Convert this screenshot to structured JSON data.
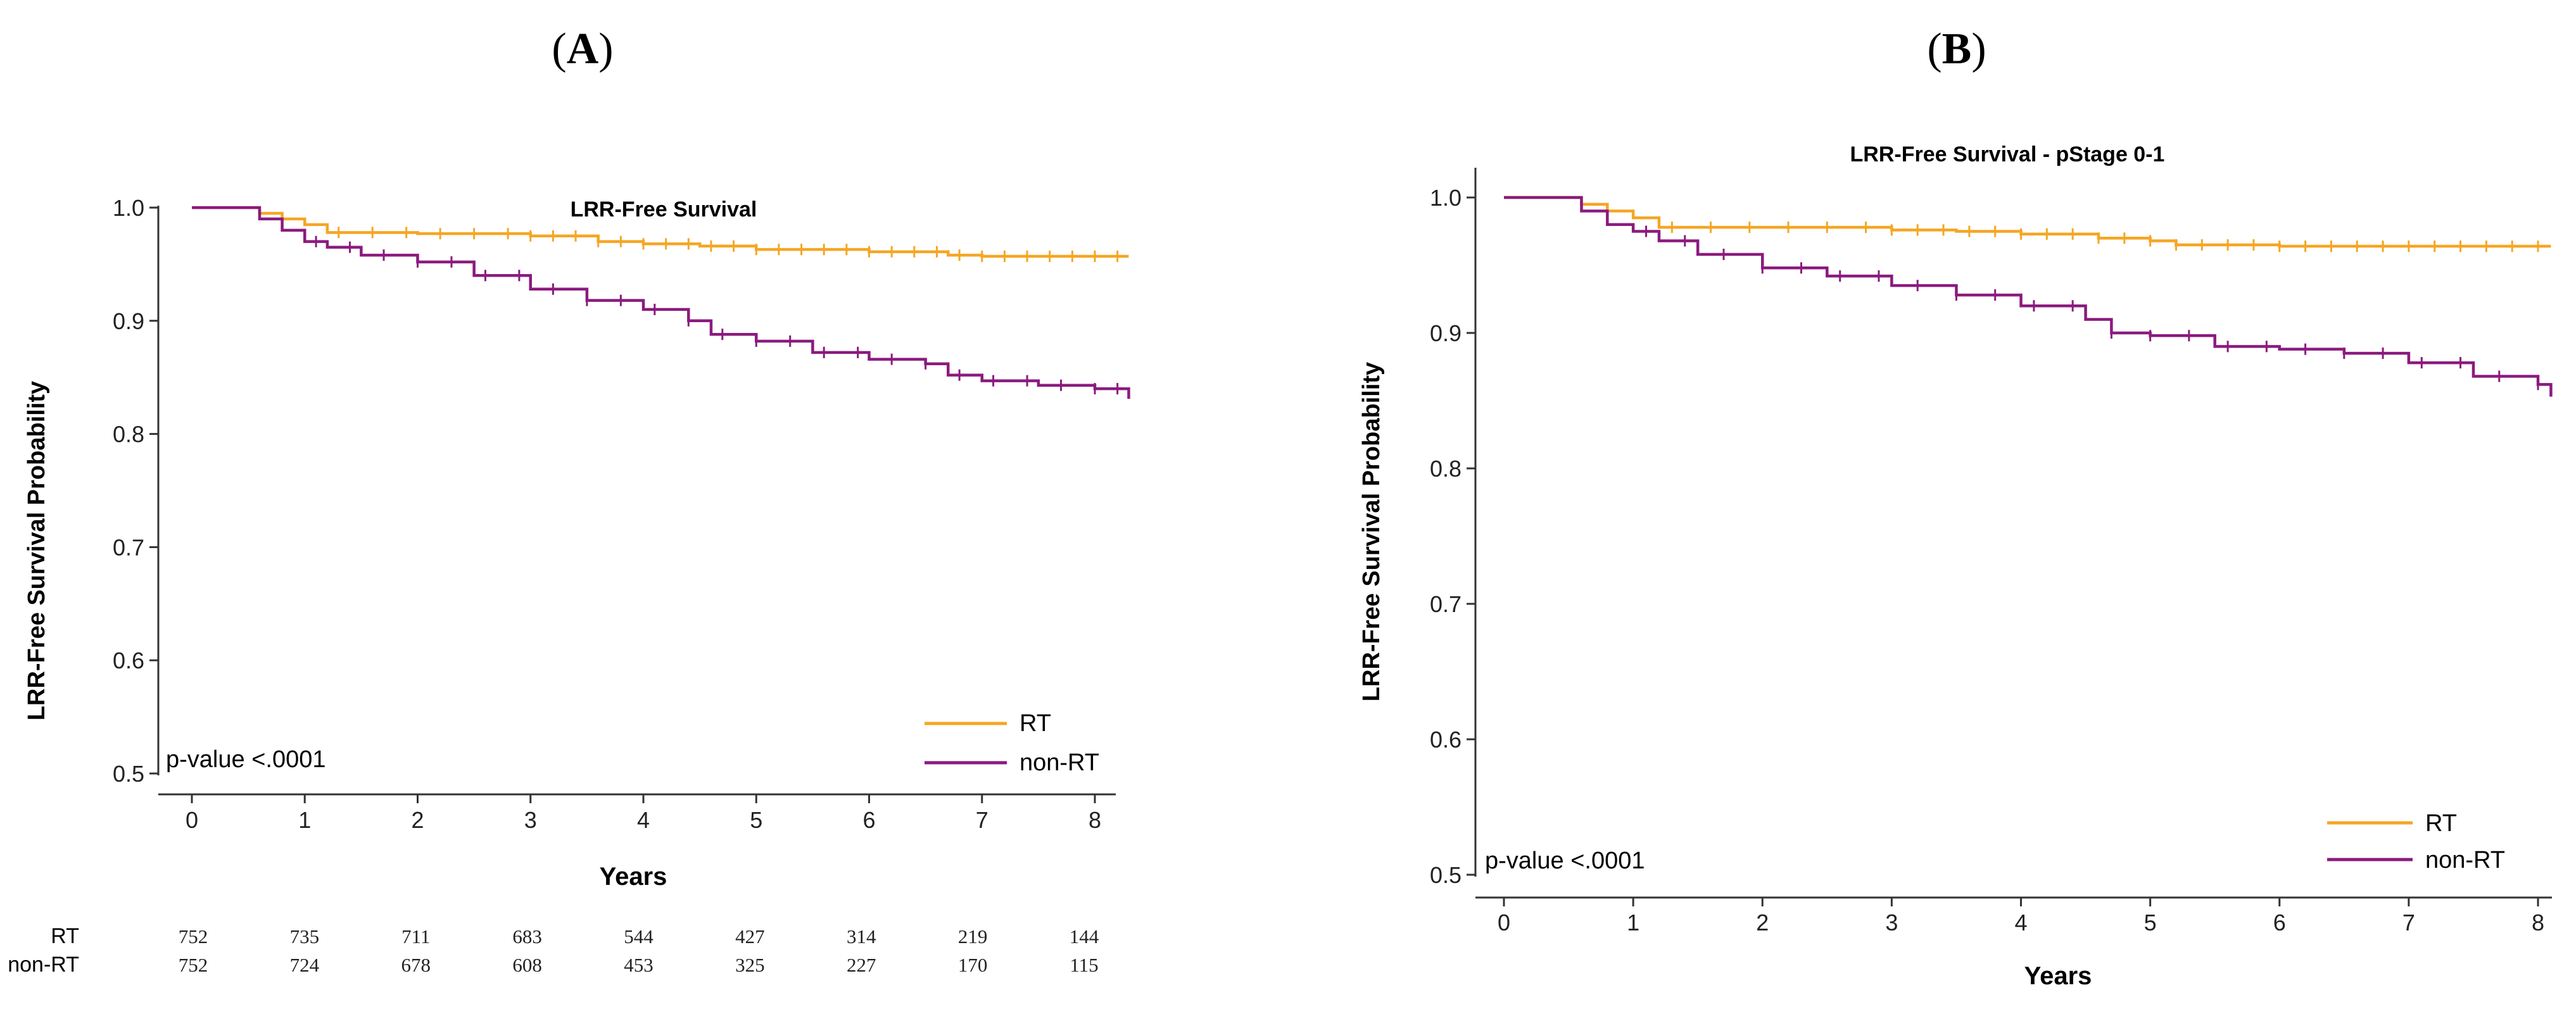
{
  "panels": [
    {
      "label": "(A)",
      "label_letter": "A",
      "p_value_text": "p-value <.0001",
      "risk_table": {
        "groups": [
          {
            "name": "RT",
            "counts": [
              752,
              735,
              711,
              683,
              544,
              427,
              314,
              219,
              144
            ]
          },
          {
            "name": "non-RT",
            "counts": [
              752,
              724,
              678,
              608,
              453,
              325,
              227,
              170,
              115
            ]
          }
        ]
      }
    },
    {
      "label": "(B)",
      "label_letter": "B",
      "p_value_text": "p-value <.0001",
      "risk_table": null
    }
  ],
  "chart_data": [
    {
      "type": "line",
      "title": "LRR-Free Survival",
      "xlabel": "Years",
      "ylabel": "LRR-Free Survival Probability",
      "xlim": [
        0,
        8.3
      ],
      "ylim": [
        0.5,
        1.0
      ],
      "xticks": [
        0,
        1,
        2,
        3,
        4,
        5,
        6,
        7,
        8
      ],
      "yticks": [
        0.5,
        0.6,
        0.7,
        0.8,
        0.9,
        1.0
      ],
      "ytick_labels": [
        "0.5",
        "0.6",
        "0.7",
        "0.8",
        "0.9",
        "1.0"
      ],
      "legend": "bottom-right",
      "series": [
        {
          "name": "RT",
          "color": "#F5A623",
          "x": [
            0,
            0.5,
            0.6,
            0.8,
            1.0,
            1.2,
            2.0,
            3.0,
            3.6,
            4.0,
            4.5,
            5.0,
            6.0,
            6.7,
            7.0,
            8.3
          ],
          "y": [
            1.0,
            1.0,
            0.995,
            0.99,
            0.985,
            0.978,
            0.977,
            0.975,
            0.97,
            0.968,
            0.966,
            0.963,
            0.961,
            0.958,
            0.957,
            0.957
          ],
          "censor_x": [
            1.3,
            1.6,
            1.9,
            2.2,
            2.5,
            2.8,
            3.0,
            3.2,
            3.4,
            3.6,
            3.8,
            4.0,
            4.2,
            4.4,
            4.6,
            4.8,
            5.0,
            5.2,
            5.4,
            5.6,
            5.8,
            6.0,
            6.2,
            6.4,
            6.6,
            6.8,
            7.0,
            7.2,
            7.4,
            7.6,
            7.8,
            8.0,
            8.2
          ]
        },
        {
          "name": "non-RT",
          "color": "#8B1A7E",
          "x": [
            0,
            0.5,
            0.6,
            0.8,
            1.0,
            1.2,
            1.5,
            2.0,
            2.5,
            3.0,
            3.5,
            4.0,
            4.4,
            4.6,
            5.0,
            5.5,
            6.0,
            6.5,
            6.7,
            7.0,
            7.5,
            8.0,
            8.3
          ],
          "y": [
            1.0,
            1.0,
            0.99,
            0.98,
            0.97,
            0.965,
            0.958,
            0.952,
            0.94,
            0.928,
            0.918,
            0.91,
            0.9,
            0.888,
            0.882,
            0.872,
            0.866,
            0.862,
            0.852,
            0.847,
            0.843,
            0.84,
            0.831
          ],
          "censor_x": [
            1.1,
            1.4,
            1.7,
            2.0,
            2.3,
            2.6,
            2.9,
            3.2,
            3.5,
            3.8,
            4.1,
            4.4,
            4.7,
            5.0,
            5.3,
            5.6,
            5.9,
            6.2,
            6.5,
            6.8,
            7.1,
            7.4,
            7.7,
            8.0,
            8.2
          ]
        }
      ]
    },
    {
      "type": "line",
      "title": "LRR-Free Survival - pStage 0-1",
      "xlabel": "Years",
      "ylabel": "LRR-Free Survival Probability",
      "xlim": [
        0,
        8.1
      ],
      "ylim": [
        0.5,
        1.0
      ],
      "xticks": [
        0,
        1,
        2,
        3,
        4,
        5,
        6,
        7,
        8
      ],
      "yticks": [
        0.5,
        0.6,
        0.7,
        0.8,
        0.9,
        1.0
      ],
      "ytick_labels": [
        "0.5",
        "0.6",
        "0.7",
        "0.8",
        "0.9",
        "1.0"
      ],
      "legend": "bottom-right",
      "series": [
        {
          "name": "RT",
          "color": "#F5A623",
          "x": [
            0,
            0.5,
            0.6,
            0.8,
            1.0,
            1.2,
            2.0,
            3.0,
            3.5,
            4.0,
            4.6,
            5.0,
            5.2,
            6.0,
            8.1
          ],
          "y": [
            1.0,
            1.0,
            0.995,
            0.99,
            0.985,
            0.978,
            0.978,
            0.976,
            0.975,
            0.973,
            0.97,
            0.968,
            0.965,
            0.964,
            0.964
          ],
          "censor_x": [
            1.3,
            1.6,
            1.9,
            2.2,
            2.5,
            2.8,
            3.0,
            3.2,
            3.4,
            3.6,
            3.8,
            4.0,
            4.2,
            4.4,
            4.6,
            4.8,
            5.0,
            5.2,
            5.4,
            5.6,
            5.8,
            6.0,
            6.2,
            6.4,
            6.6,
            6.8,
            7.0,
            7.2,
            7.4,
            7.6,
            7.8,
            8.0
          ]
        },
        {
          "name": "non-RT",
          "color": "#8B1A7E",
          "x": [
            0,
            0.5,
            0.6,
            0.8,
            1.0,
            1.2,
            1.5,
            2.0,
            2.5,
            3.0,
            3.5,
            4.0,
            4.5,
            4.7,
            5.0,
            5.5,
            6.0,
            6.5,
            7.0,
            7.5,
            8.0,
            8.1
          ],
          "y": [
            1.0,
            1.0,
            0.99,
            0.98,
            0.975,
            0.968,
            0.958,
            0.948,
            0.942,
            0.935,
            0.928,
            0.92,
            0.91,
            0.9,
            0.898,
            0.89,
            0.888,
            0.885,
            0.878,
            0.868,
            0.862,
            0.853
          ],
          "censor_x": [
            1.1,
            1.4,
            1.7,
            2.0,
            2.3,
            2.6,
            2.9,
            3.2,
            3.5,
            3.8,
            4.1,
            4.4,
            4.7,
            5.0,
            5.3,
            5.6,
            5.9,
            6.2,
            6.5,
            6.8,
            7.1,
            7.4,
            7.7,
            8.0
          ]
        }
      ]
    }
  ]
}
